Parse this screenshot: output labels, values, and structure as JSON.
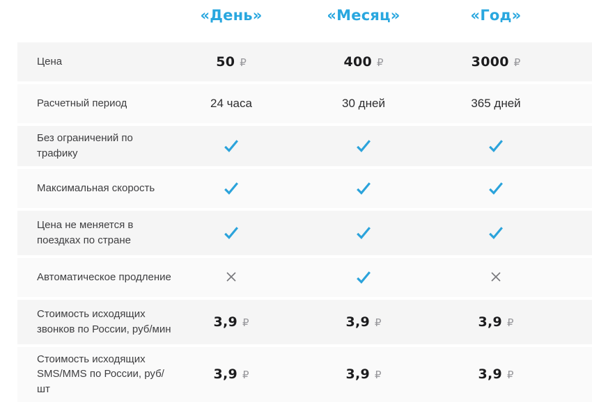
{
  "table": {
    "columns": [
      {
        "id": "day",
        "label": "«День»"
      },
      {
        "id": "month",
        "label": "«Месяц»"
      },
      {
        "id": "year",
        "label": "«Год»"
      }
    ],
    "currency_symbol": "₽",
    "rows": [
      {
        "label": "Цена",
        "type": "price",
        "values": [
          "50",
          "400",
          "3000"
        ]
      },
      {
        "label": "Расчетный период",
        "type": "text",
        "values": [
          "24 часа",
          "30 дней",
          "365 дней"
        ]
      },
      {
        "label": "Без ограничений по трафику",
        "type": "icon",
        "values": [
          "check",
          "check",
          "check"
        ]
      },
      {
        "label": "Максимальная скорость",
        "type": "icon",
        "values": [
          "check",
          "check",
          "check"
        ]
      },
      {
        "label": "Цена не меняется в поездках по стране",
        "type": "icon",
        "values": [
          "check",
          "check",
          "check"
        ]
      },
      {
        "label": "Автоматическое продление",
        "type": "icon",
        "values": [
          "cross",
          "check",
          "cross"
        ]
      },
      {
        "label": "Стоимость исходящих звонков по России, руб/мин",
        "type": "price",
        "values": [
          "3,9",
          "3,9",
          "3,9"
        ]
      },
      {
        "label": "Стоимость исходящих SMS/MMS по России, руб/шт",
        "type": "price",
        "values": [
          "3,9",
          "3,9",
          "3,9"
        ]
      }
    ],
    "colors": {
      "header_blue": "#29a7df",
      "check_blue": "#2ba3db",
      "cross_gray": "#77777b",
      "row_gray": "#f5f5f5",
      "row_light": "#fafafa"
    }
  }
}
